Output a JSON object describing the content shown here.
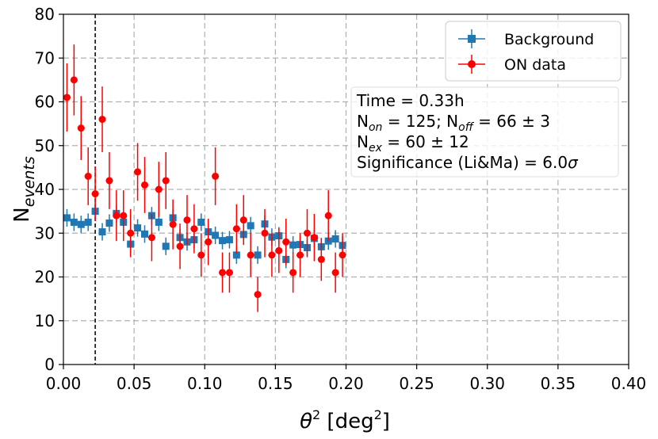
{
  "chart_data": {
    "type": "scatter",
    "title": "",
    "xlabel": {
      "main": "θ",
      "sup": "2",
      "unit_open": " [deg",
      "unit_sup": "2",
      "unit_close": "]"
    },
    "ylabel": {
      "main": "N",
      "sub": "events"
    },
    "xlim": [
      0.0,
      0.4
    ],
    "ylim": [
      0,
      80
    ],
    "x_ticks": [
      "0.00",
      "0.05",
      "0.10",
      "0.15",
      "0.20",
      "0.25",
      "0.30",
      "0.35",
      "0.40"
    ],
    "y_ticks": [
      "0",
      "10",
      "20",
      "30",
      "40",
      "50",
      "60",
      "70",
      "80"
    ],
    "grid": true,
    "cut_line_x": 0.0225,
    "legend": {
      "placement": "top-right",
      "entries": [
        {
          "name": "Background",
          "color": "#1f77b4",
          "marker": "square"
        },
        {
          "name": "ON data",
          "color": "#ff0000",
          "marker": "circle"
        }
      ]
    },
    "x_halfwidth": 0.0025,
    "series": [
      {
        "name": "Background",
        "color": "#1f77b4",
        "marker": "square",
        "x": [
          0.0025,
          0.0075,
          0.0125,
          0.0175,
          0.0225,
          0.0275,
          0.0325,
          0.0375,
          0.0425,
          0.0475,
          0.0525,
          0.0575,
          0.0625,
          0.0675,
          0.0725,
          0.0775,
          0.0825,
          0.0875,
          0.0925,
          0.0975,
          0.1025,
          0.1075,
          0.1125,
          0.1175,
          0.1225,
          0.1275,
          0.1325,
          0.1375,
          0.1425,
          0.1475,
          0.1525,
          0.1575,
          0.1625,
          0.1675,
          0.1725,
          0.1775,
          0.1825,
          0.1875,
          0.1925,
          0.1975
        ],
        "y": [
          33.5,
          32.5,
          32.0,
          32.5,
          35.0,
          30.3,
          32.3,
          34.5,
          32.5,
          27.5,
          31.2,
          29.8,
          34.0,
          32.5,
          27.0,
          33.5,
          29.0,
          28.0,
          28.5,
          32.5,
          30.3,
          29.5,
          28.3,
          28.5,
          25.0,
          29.7,
          31.7,
          25.0,
          32.1,
          29.1,
          29.4,
          24.0,
          27.3,
          27.4,
          26.7,
          28.8,
          26.9,
          28.2,
          28.7,
          27.2
        ],
        "err": [
          2.0,
          2.0,
          2.0,
          2.0,
          2.0,
          2.0,
          2.0,
          2.0,
          2.0,
          2.0,
          2.0,
          2.0,
          2.0,
          2.0,
          2.0,
          2.0,
          2.0,
          2.0,
          2.0,
          2.0,
          2.0,
          2.0,
          2.0,
          2.0,
          2.0,
          2.0,
          2.0,
          2.0,
          2.0,
          2.0,
          2.0,
          2.0,
          2.0,
          2.0,
          2.0,
          2.0,
          2.0,
          2.0,
          2.0,
          2.0
        ]
      },
      {
        "name": "ON data",
        "color": "#ff0000",
        "marker": "circle",
        "x": [
          0.0025,
          0.0075,
          0.0125,
          0.0175,
          0.0225,
          0.0275,
          0.0325,
          0.0375,
          0.0425,
          0.0475,
          0.0525,
          0.0575,
          0.0625,
          0.0675,
          0.0725,
          0.0775,
          0.0825,
          0.0875,
          0.0925,
          0.0975,
          0.1025,
          0.1075,
          0.1125,
          0.1175,
          0.1225,
          0.1275,
          0.1325,
          0.1375,
          0.1425,
          0.1475,
          0.1525,
          0.1575,
          0.1625,
          0.1675,
          0.1725,
          0.1775,
          0.1825,
          0.1875,
          0.1925,
          0.1975
        ],
        "y": [
          61,
          65,
          54,
          43,
          39,
          56,
          42,
          34,
          34,
          30,
          44,
          41,
          29,
          40,
          42,
          32,
          27,
          33,
          31,
          25,
          28,
          43,
          21,
          21,
          31,
          33,
          25,
          16,
          30,
          25,
          26,
          28,
          21,
          25,
          30,
          29,
          24,
          34,
          21,
          25
        ],
        "err": [
          7.8,
          8.1,
          7.3,
          6.6,
          6.2,
          7.5,
          6.5,
          5.8,
          5.8,
          5.5,
          6.6,
          6.4,
          5.4,
          6.3,
          6.5,
          5.7,
          5.2,
          5.7,
          5.6,
          5.0,
          5.3,
          6.6,
          4.6,
          4.6,
          5.6,
          5.7,
          5.0,
          4.0,
          5.5,
          5.0,
          5.1,
          5.3,
          4.6,
          5.0,
          5.5,
          5.4,
          4.9,
          5.8,
          4.6,
          5.0
        ]
      }
    ],
    "info_box": {
      "time": "Time = 0.33h",
      "non_pre": "N",
      "non_sub": "on",
      "non_mid": " = 125; N",
      "noff_sub": "off",
      "non_post": " = 66 ± 3",
      "nex_pre": "N",
      "nex_sub": "ex",
      "nex_post": " = 60 ± 12",
      "sig_pre": "Significance (Li&Ma) = 6.0",
      "sig_sym": "σ"
    }
  }
}
